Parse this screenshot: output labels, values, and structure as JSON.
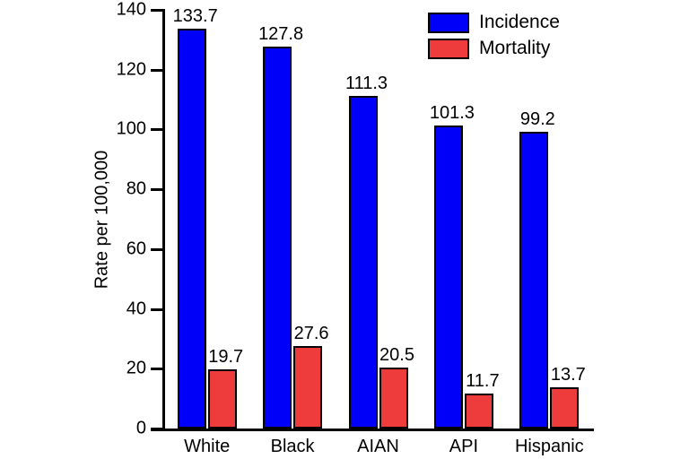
{
  "chart_data": {
    "type": "bar",
    "categories": [
      "White",
      "Black",
      "AIAN",
      "API",
      "Hispanic"
    ],
    "series": [
      {
        "name": "Incidence",
        "color": "#0000fa",
        "values": [
          133.7,
          127.8,
          111.3,
          101.3,
          99.2
        ]
      },
      {
        "name": "Mortality",
        "color": "#ee3b3b",
        "values": [
          19.7,
          27.6,
          20.5,
          11.7,
          13.7
        ]
      }
    ],
    "title": "",
    "xlabel": "",
    "ylabel": "Rate per 100,000",
    "ylim": [
      0,
      140
    ],
    "yticks": [
      0,
      20,
      40,
      60,
      80,
      100,
      120,
      140
    ],
    "grid": false,
    "legend_position": "top-right",
    "value_labels_shown": true
  },
  "legend": {
    "items": [
      {
        "label": "Incidence",
        "color": "#0000fa"
      },
      {
        "label": "Mortality",
        "color": "#ee3b3b"
      }
    ]
  }
}
